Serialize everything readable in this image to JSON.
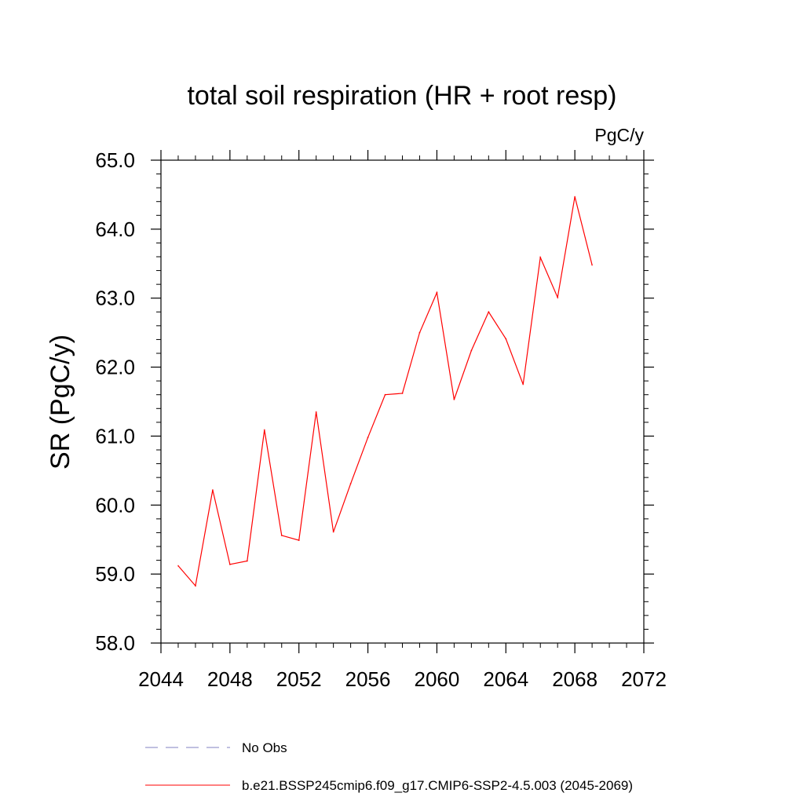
{
  "chart_data": {
    "type": "line",
    "title": "total soil respiration (HR + root resp)",
    "units_label": "PgC/y",
    "xlabel": "",
    "ylabel": "SR  (PgC/y)",
    "xlim": [
      2044,
      2072
    ],
    "ylim": [
      58.0,
      65.0
    ],
    "xticks": [
      2044,
      2048,
      2052,
      2056,
      2060,
      2064,
      2068,
      2072
    ],
    "yticks": [
      58.0,
      59.0,
      60.0,
      61.0,
      62.0,
      63.0,
      64.0,
      65.0
    ],
    "x": [
      2045,
      2046,
      2047,
      2048,
      2049,
      2050,
      2051,
      2052,
      2053,
      2054,
      2055,
      2056,
      2057,
      2058,
      2059,
      2060,
      2061,
      2062,
      2063,
      2064,
      2065,
      2066,
      2067,
      2068,
      2069
    ],
    "series": [
      {
        "name": "b.e21.BSSP245cmip6.f09_g17.CMIP6-SSP2-4.5.003 (2045-2069)",
        "color": "#ff0000",
        "values": [
          59.12,
          58.83,
          60.22,
          59.14,
          59.19,
          61.09,
          59.56,
          59.49,
          61.35,
          59.61,
          60.31,
          60.98,
          61.6,
          61.62,
          62.5,
          63.08,
          61.53,
          62.24,
          62.8,
          62.41,
          61.75,
          63.59,
          63.01,
          64.47,
          63.48
        ]
      }
    ],
    "legend": [
      {
        "label": "No Obs",
        "style": "dashed",
        "color": "#8080c0"
      },
      {
        "label": "b.e21.BSSP245cmip6.f09_g17.CMIP6-SSP2-4.5.003 (2045-2069)",
        "style": "solid",
        "color": "#ff0000"
      }
    ],
    "legend_placement": "bottom",
    "grid": false
  }
}
